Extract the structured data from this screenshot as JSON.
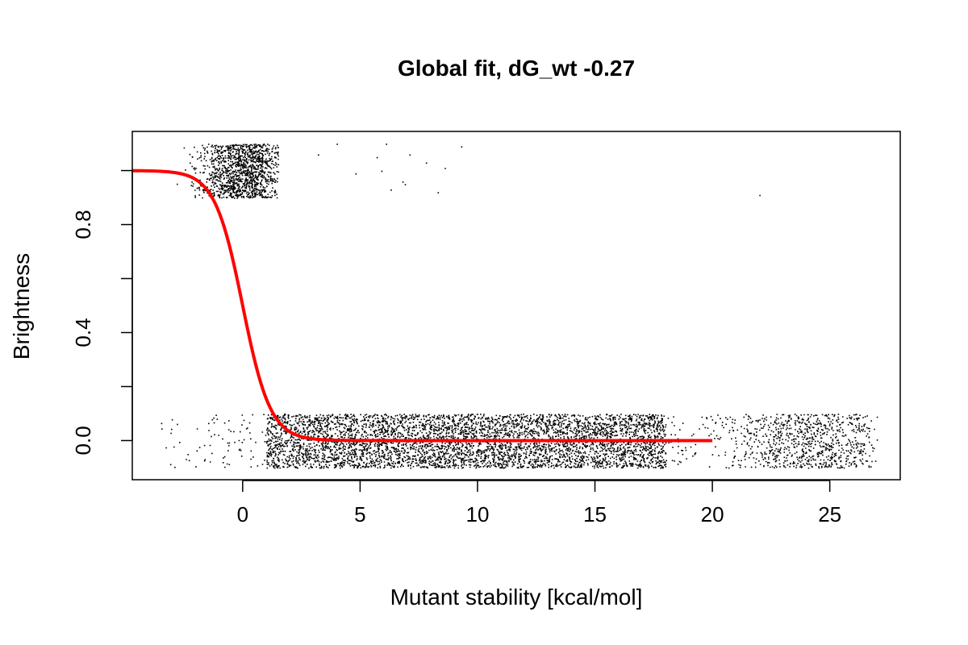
{
  "chart_data": {
    "type": "scatter",
    "title": "Global fit, dG_wt -0.27",
    "xlabel": "Mutant stability [kcal/mol]",
    "ylabel": "Brightness",
    "xlim": [
      -4.7,
      28.0
    ],
    "ylim": [
      -0.145,
      1.145
    ],
    "x_ticks": [
      0,
      5,
      10,
      15,
      20,
      25
    ],
    "x_tick_labels": [
      "0",
      "5",
      "10",
      "15",
      "20",
      "25"
    ],
    "y_ticks": [
      0.0,
      0.2,
      0.4,
      0.6,
      0.8,
      1.0
    ],
    "y_tick_labels": [
      "0.0",
      "",
      "0.4",
      "",
      "0.8",
      ""
    ],
    "grid": false,
    "legend": "none",
    "point_color": "#000000",
    "curve_color": "#ff0000",
    "series": [
      {
        "kind": "points",
        "clusters": [
          {
            "x_range": [
              -3.6,
              27.0
            ],
            "y_range": [
              -0.1,
              0.1
            ],
            "x_center": 9.5,
            "x_spread": 6.0,
            "dense_x_range": [
              1.0,
              18.0
            ],
            "count": 9000
          },
          {
            "x_range": [
              -3.4,
              1.5
            ],
            "y_range": [
              0.9,
              1.1
            ],
            "x_center": 0.0,
            "x_spread": 0.9,
            "count": 1400
          },
          {
            "x_range": [
              20.5,
              27.0
            ],
            "y_range": [
              -0.1,
              0.1
            ],
            "x_center": 24.0,
            "x_spread": 1.8,
            "count": 900
          }
        ],
        "outliers": [
          {
            "x": 3.2,
            "y": 1.06
          },
          {
            "x": 4.0,
            "y": 1.1
          },
          {
            "x": 4.8,
            "y": 0.99
          },
          {
            "x": 5.7,
            "y": 1.05
          },
          {
            "x": 5.9,
            "y": 1.0
          },
          {
            "x": 6.1,
            "y": 1.1
          },
          {
            "x": 6.3,
            "y": 0.93
          },
          {
            "x": 6.8,
            "y": 0.96
          },
          {
            "x": 6.9,
            "y": 0.95
          },
          {
            "x": 7.1,
            "y": 1.06
          },
          {
            "x": 7.8,
            "y": 1.03
          },
          {
            "x": 8.3,
            "y": 0.92
          },
          {
            "x": 8.6,
            "y": 1.01
          },
          {
            "x": 9.3,
            "y": 1.09
          },
          {
            "x": 22.0,
            "y": 0.91
          }
        ]
      },
      {
        "kind": "fit",
        "x_range": [
          -4.7,
          20.0
        ],
        "midpoint": 0.0,
        "slope": 1.69,
        "upper": 1.0,
        "lower": 0.0
      }
    ]
  }
}
